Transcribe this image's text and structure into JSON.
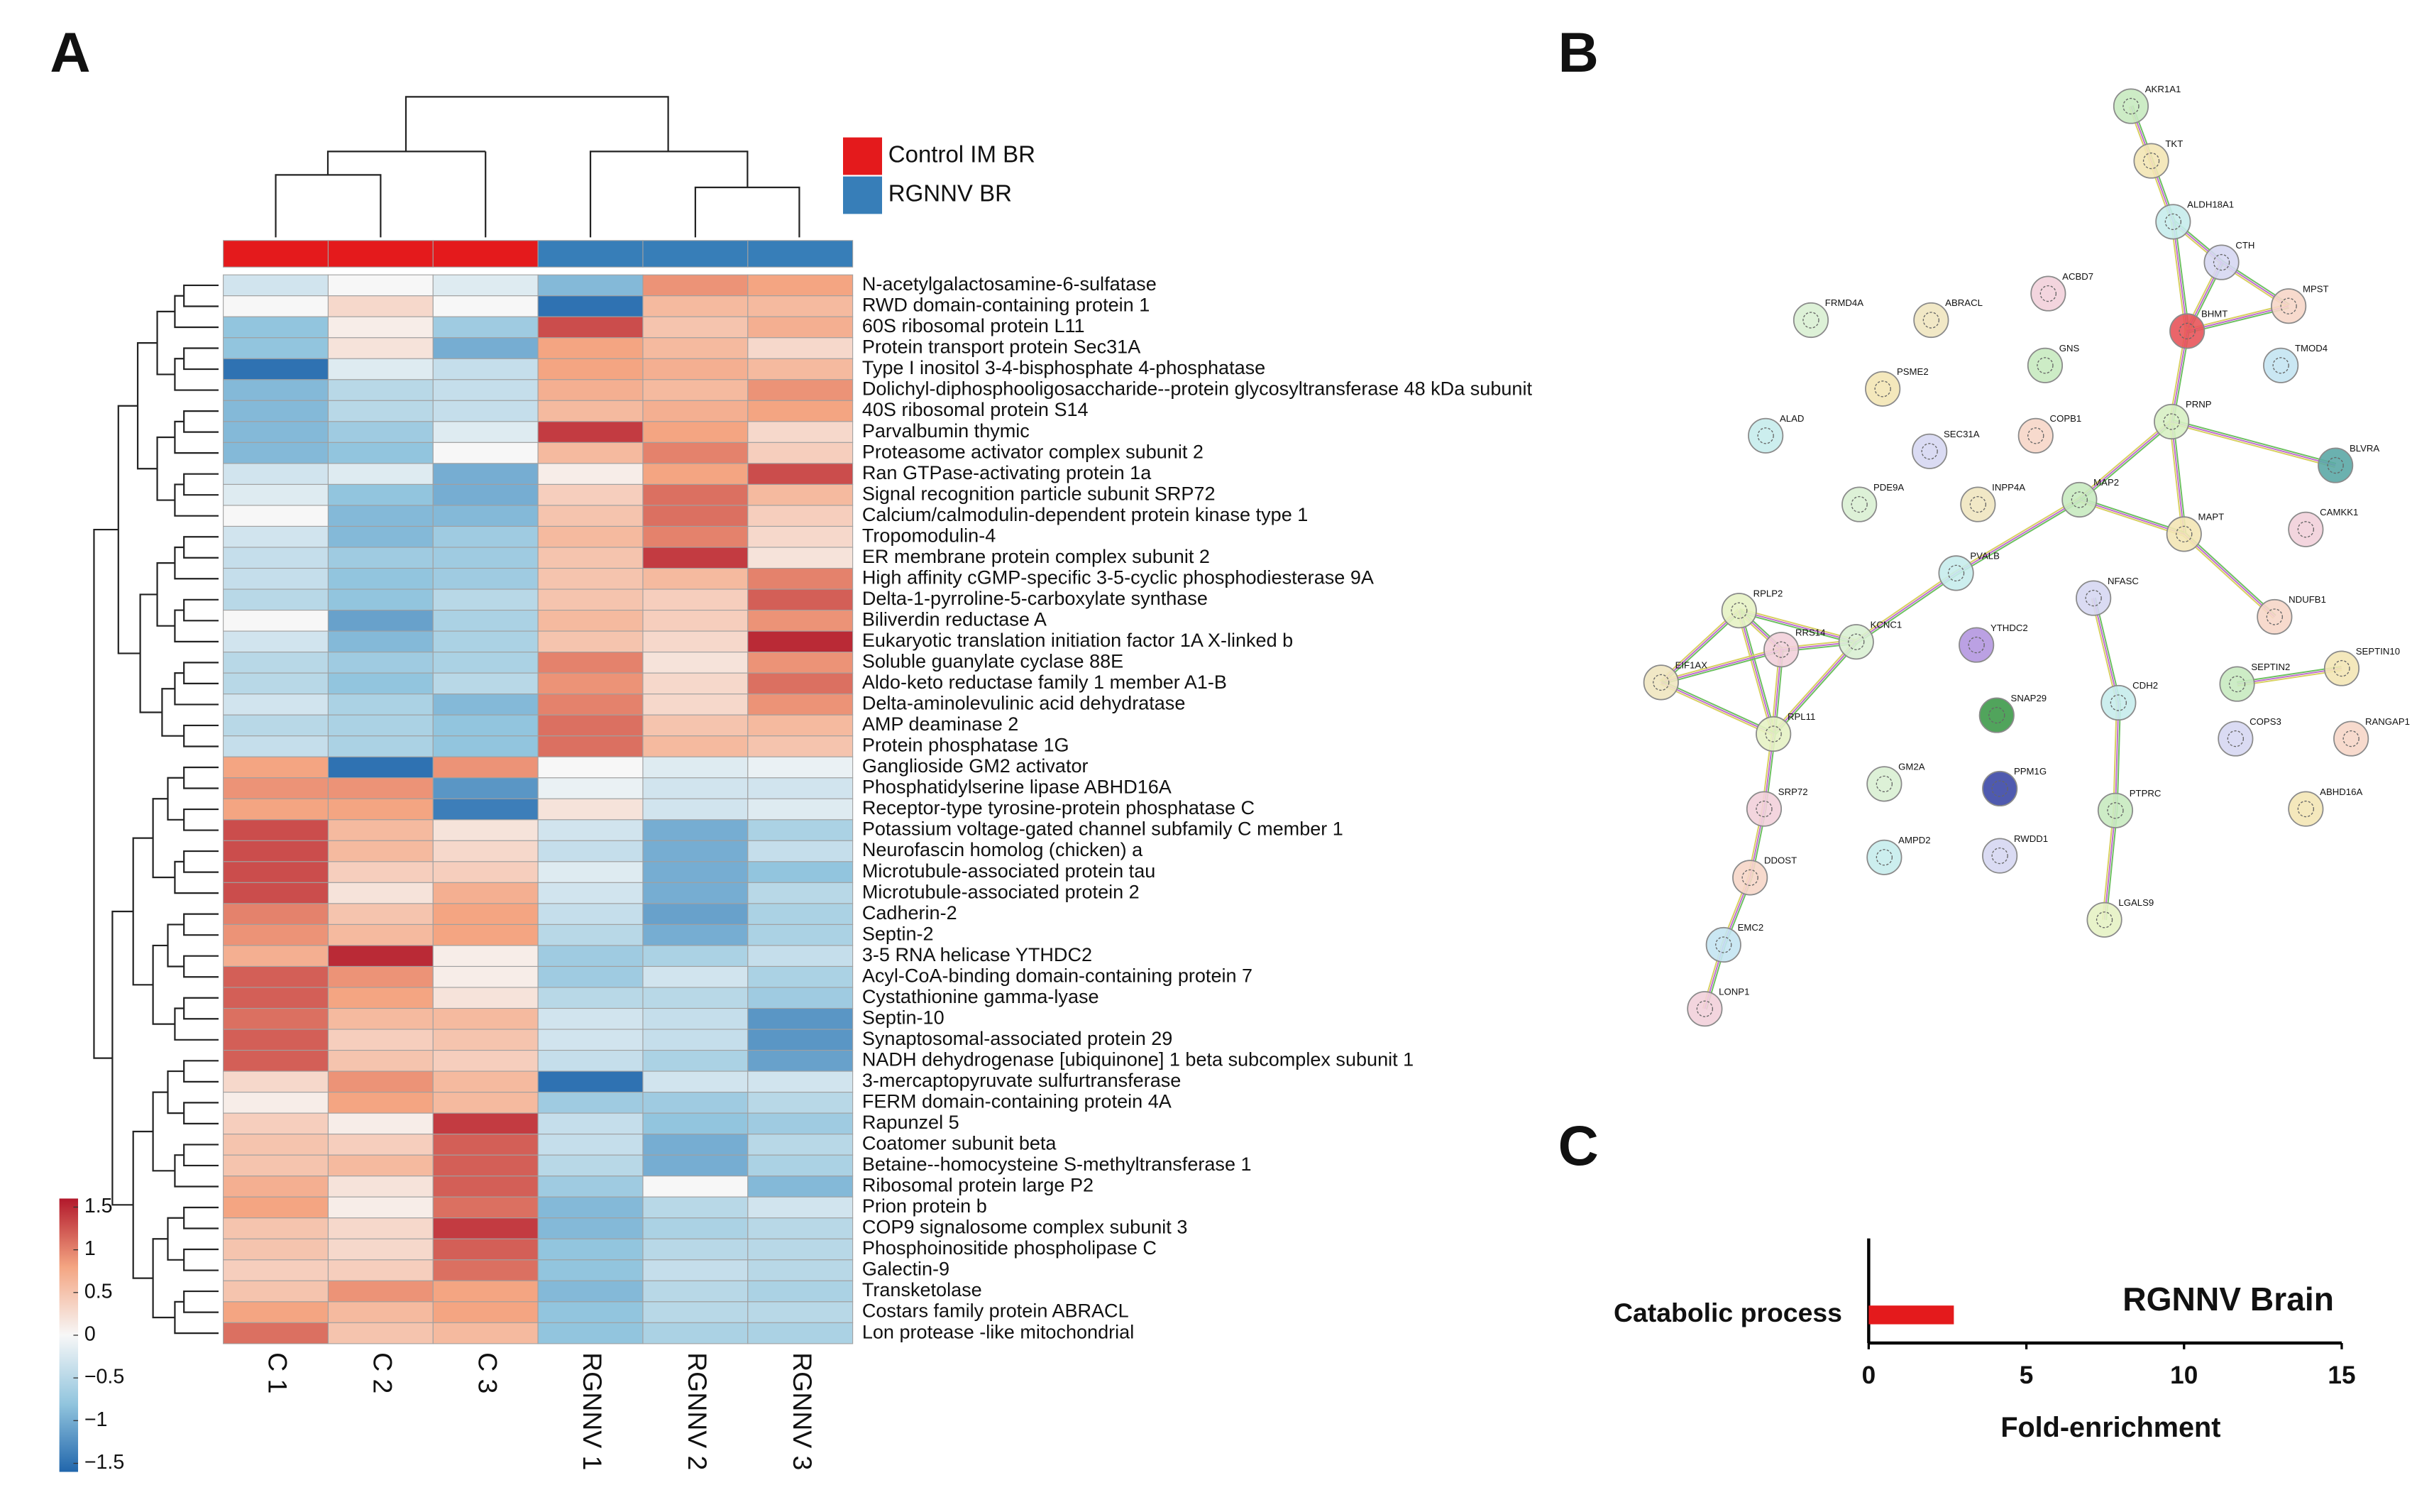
{
  "panel_labels": [
    "A",
    "B",
    "C"
  ],
  "chart_data": [
    {
      "type": "heatmap",
      "columns": [
        "C 1",
        "C 2",
        "C 3",
        "RGNNV 1",
        "RGNNV 2",
        "RGNNV 3"
      ],
      "legend": [
        {
          "name": "Control IM BR",
          "color": "#e41a1c"
        },
        {
          "name": "RGNNV BR",
          "color": "#377eb8"
        }
      ],
      "column_groups": [
        0,
        0,
        0,
        1,
        1,
        1
      ],
      "rows": [
        "N-acetylgalactosamine-6-sulfatase",
        "RWD domain-containing protein 1",
        "60S ribosomal protein L11",
        "Protein transport protein Sec31A",
        "Type I inositol 3-4-bisphosphate 4-phosphatase",
        "Dolichyl-diphosphooligosaccharide--protein glycosyltransferase 48 kDa subunit",
        "40S ribosomal protein S14",
        "Parvalbumin thymic",
        "Proteasome activator complex subunit 2",
        "Ran GTPase-activating protein 1a",
        "Signal recognition particle subunit SRP72",
        "Calcium/calmodulin-dependent protein kinase type 1",
        "Tropomodulin-4",
        "ER membrane protein complex subunit 2",
        "High affinity cGMP-specific 3-5-cyclic phosphodiesterase 9A",
        "Delta-1-pyrroline-5-carboxylate synthase",
        "Biliverdin reductase A",
        "Eukaryotic translation initiation factor 1A X-linked b",
        "Soluble guanylate cyclase 88E",
        "Aldo-keto reductase family 1 member A1-B",
        "Delta-aminolevulinic acid dehydratase",
        "AMP deaminase 2",
        "Protein phosphatase 1G",
        "Ganglioside GM2 activator",
        "Phosphatidylserine lipase ABHD16A",
        "Receptor-type tyrosine-protein phosphatase C",
        "Potassium voltage-gated channel subfamily C member 1",
        "Neurofascin homolog (chicken) a",
        "Microtubule-associated protein tau",
        "Microtubule-associated protein 2",
        "Cadherin-2",
        "Septin-2",
        "3-5 RNA helicase YTHDC2",
        "Acyl-CoA-binding domain-containing protein 7",
        "Cystathionine gamma-lyase",
        "Septin-10",
        "Synaptosomal-associated protein 29",
        "NADH dehydrogenase [ubiquinone] 1 beta subcomplex subunit 1",
        "3-mercaptopyruvate sulfurtransferase",
        "FERM domain-containing protein 4A",
        "Rapunzel 5",
        "Coatomer subunit beta",
        "Betaine--homocysteine S-methyltransferase 1",
        "Ribosomal protein large P2",
        "Prion protein b",
        "COP9 signalosome complex subunit 3",
        "Phosphoinositide phospholipase C",
        "Galectin-9",
        "Transketolase",
        "Costars family protein ABRACL",
        "Lon protease -like mitochondrial"
      ],
      "values": [
        [
          -0.3,
          0,
          -0.2,
          -0.9,
          0.9,
          0.8
        ],
        [
          0,
          0.3,
          0,
          -1.5,
          0.6,
          0.6
        ],
        [
          -0.8,
          0.1,
          -0.7,
          1.3,
          0.5,
          0.7
        ],
        [
          -0.8,
          0.2,
          -1.0,
          0.8,
          0.6,
          0.3
        ],
        [
          -1.5,
          -0.2,
          -0.4,
          0.8,
          0.7,
          0.6
        ],
        [
          -0.9,
          -0.5,
          -0.4,
          0.7,
          0.6,
          0.9
        ],
        [
          -0.9,
          -0.5,
          -0.4,
          0.6,
          0.7,
          0.8
        ],
        [
          -0.9,
          -0.7,
          -0.2,
          1.4,
          0.8,
          0.3
        ],
        [
          -0.9,
          -0.8,
          0,
          0.6,
          1.0,
          0.4
        ],
        [
          -0.3,
          -0.2,
          -1.0,
          0.1,
          0.8,
          1.3
        ],
        [
          -0.2,
          -0.8,
          -1.0,
          0.4,
          1.1,
          0.6
        ],
        [
          0,
          -0.9,
          -0.9,
          0.5,
          1.1,
          0.4
        ],
        [
          -0.3,
          -0.9,
          -0.7,
          0.6,
          1.0,
          0.3
        ],
        [
          -0.4,
          -0.7,
          -0.7,
          0.5,
          1.4,
          0.2
        ],
        [
          -0.4,
          -0.8,
          -0.7,
          0.5,
          0.6,
          1.0
        ],
        [
          -0.5,
          -0.8,
          -0.5,
          0.5,
          0.4,
          1.2
        ],
        [
          0,
          -1.1,
          -0.6,
          0.6,
          0.4,
          0.9
        ],
        [
          -0.3,
          -0.9,
          -0.6,
          0.5,
          0.3,
          1.5
        ],
        [
          -0.5,
          -0.7,
          -0.6,
          1.0,
          0.2,
          0.9
        ],
        [
          -0.5,
          -0.8,
          -0.5,
          0.9,
          0.3,
          1.1
        ],
        [
          -0.3,
          -0.6,
          -0.9,
          1.0,
          0.3,
          0.9
        ],
        [
          -0.5,
          -0.6,
          -0.8,
          1.1,
          0.5,
          0.6
        ],
        [
          -0.4,
          -0.6,
          -0.8,
          1.1,
          0.6,
          0.5
        ],
        [
          0.8,
          -1.5,
          0.9,
          0,
          -0.2,
          -0.1
        ],
        [
          0.9,
          0.9,
          -1.2,
          -0.1,
          -0.3,
          -0.3
        ],
        [
          0.8,
          0.8,
          -1.4,
          0.2,
          -0.3,
          -0.2
        ],
        [
          1.3,
          0.6,
          0.2,
          -0.3,
          -1.0,
          -0.6
        ],
        [
          1.3,
          0.6,
          0.3,
          -0.4,
          -1.0,
          -0.4
        ],
        [
          1.3,
          0.4,
          0.4,
          -0.2,
          -1.0,
          -0.8
        ],
        [
          1.3,
          0.2,
          0.7,
          -0.3,
          -1.0,
          -0.5
        ],
        [
          1.0,
          0.5,
          0.8,
          -0.4,
          -1.1,
          -0.6
        ],
        [
          0.9,
          0.6,
          0.8,
          -0.5,
          -1.0,
          -0.6
        ],
        [
          0.7,
          1.5,
          0.1,
          -0.7,
          -0.6,
          -0.4
        ],
        [
          1.2,
          0.9,
          0.1,
          -0.7,
          -0.3,
          -0.6
        ],
        [
          1.2,
          0.8,
          0.2,
          -0.5,
          -0.5,
          -0.7
        ],
        [
          1.1,
          0.6,
          0.6,
          -0.3,
          -0.4,
          -1.2
        ],
        [
          1.2,
          0.4,
          0.5,
          -0.3,
          -0.4,
          -1.2
        ],
        [
          1.2,
          0.5,
          0.4,
          -0.4,
          -0.6,
          -1.1
        ],
        [
          0.3,
          0.9,
          0.6,
          -1.5,
          -0.3,
          -0.3
        ],
        [
          0.1,
          0.8,
          0.6,
          -0.7,
          -0.7,
          -0.5
        ],
        [
          0.4,
          0.1,
          1.4,
          -0.4,
          -0.8,
          -0.7
        ],
        [
          0.5,
          0.4,
          1.2,
          -0.4,
          -1.0,
          -0.5
        ],
        [
          0.5,
          0.6,
          1.2,
          -0.5,
          -1.0,
          -0.6
        ],
        [
          0.7,
          0.2,
          1.2,
          -0.7,
          0,
          -0.9
        ],
        [
          0.8,
          0.1,
          1.1,
          -0.9,
          -0.5,
          -0.3
        ],
        [
          0.5,
          0.3,
          1.4,
          -0.9,
          -0.6,
          -0.5
        ],
        [
          0.5,
          0.3,
          1.2,
          -0.8,
          -0.5,
          -0.5
        ],
        [
          0.4,
          0.4,
          1.1,
          -0.8,
          -0.4,
          -0.5
        ],
        [
          0.5,
          0.9,
          0.8,
          -0.9,
          -0.5,
          -0.6
        ],
        [
          0.8,
          0.6,
          0.8,
          -0.8,
          -0.5,
          -0.5
        ],
        [
          1.1,
          0.5,
          0.6,
          -0.8,
          -0.6,
          -0.6
        ]
      ],
      "zlim": [
        -1.6,
        1.6
      ],
      "zticks": [
        {
          "value": -1.5,
          "label": "−1.5"
        },
        {
          "value": -1,
          "label": "−1"
        },
        {
          "value": -0.5,
          "label": "−0.5"
        },
        0,
        0.5,
        1,
        1.5
      ],
      "colorscale": [
        "#2166ac",
        "#92c5de",
        "#f7f7f7",
        "#f4a582",
        "#b2182b"
      ]
    },
    {
      "type": "bar",
      "orientation": "horizontal",
      "annotation": "RGNNV Brain",
      "categories": [
        "Catabolic process"
      ],
      "values": [
        2.7
      ],
      "color": "#e41a1c",
      "xlim": [
        0,
        15
      ],
      "xticks": [
        0,
        5,
        10,
        15
      ],
      "xlabel": "Fold-enrichment"
    }
  ],
  "network": {
    "nodes": [
      "AKR1A1",
      "TKT",
      "ALDH18A1",
      "CTH",
      "MPST",
      "BHMT",
      "TMOD4",
      "ACBD7",
      "FRMD4A",
      "ABRACL",
      "GNS",
      "PSME2",
      "ALAD",
      "SEC31A",
      "COPB1",
      "PRNP",
      "BLVRA",
      "CAMKK1",
      "PDE9A",
      "INPP4A",
      "MAP2",
      "MAPT",
      "PVALB",
      "NFASC",
      "NDUFB1",
      "RPLP2",
      "YTHDC2",
      "RRS14",
      "KCNC1",
      "EIF1AX",
      "SEPTIN2",
      "SEPTIN10",
      "CDH2",
      "COPS3",
      "RANGAP1",
      "RPL11",
      "SNAP29",
      "SRP72",
      "GM2A",
      "PPM1G",
      "PTPRC",
      "ABHD16A",
      "AMPD2",
      "RWDD1",
      "DDOST",
      "LGALS9",
      "EMC2",
      "LONP1"
    ]
  }
}
